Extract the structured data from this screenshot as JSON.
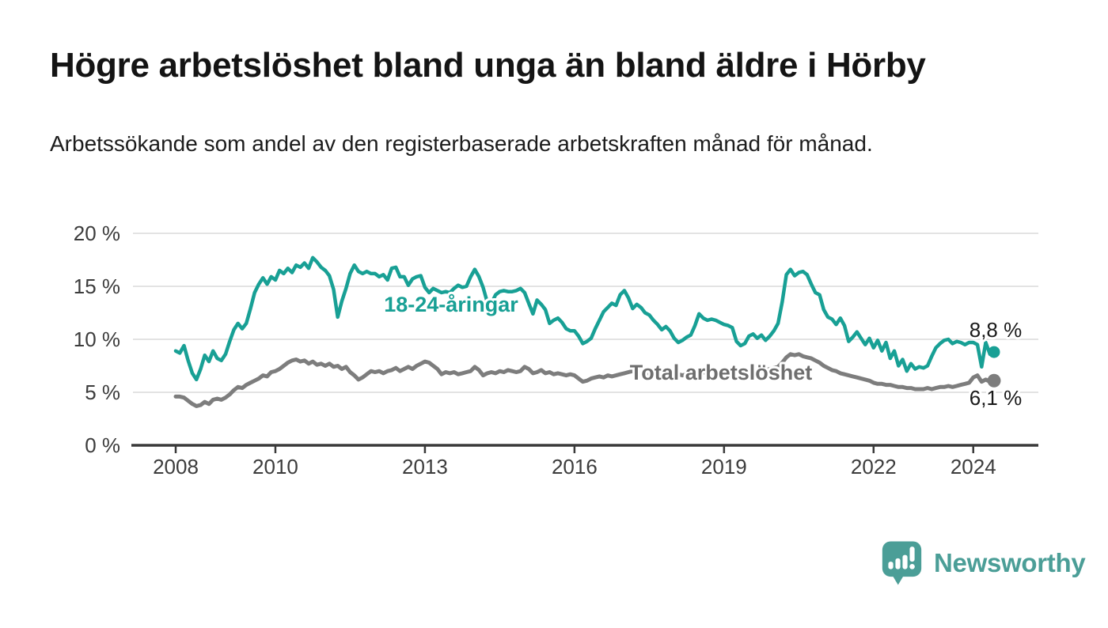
{
  "header": {
    "title": "Högre arbetslöshet bland unga än bland äldre i Hörby",
    "subtitle": "Arbetssökande som andel av den registerbaserade arbetskraften månad för månad."
  },
  "chart_data": {
    "type": "line",
    "title": "Högre arbetslöshet bland unga än bland äldre i Hörby",
    "subtitle": "Arbetssökande som andel av den registerbaserade arbetskraften månad för månad.",
    "frequency": "monthly",
    "x_start": "2008-01",
    "x_end": "2024-06",
    "grid": true,
    "legend_position": "inline-on-lines",
    "ylim": [
      0,
      21
    ],
    "ylabel": "",
    "xlabel": "",
    "y_ticks": [
      {
        "value": 0,
        "label": "0 %"
      },
      {
        "value": 5,
        "label": "5 %"
      },
      {
        "value": 10,
        "label": "10 %"
      },
      {
        "value": 15,
        "label": "15 %"
      },
      {
        "value": 20,
        "label": "20 %"
      }
    ],
    "x_ticks": [
      {
        "year": 2008,
        "label": "2008"
      },
      {
        "year": 2010,
        "label": "2010"
      },
      {
        "year": 2013,
        "label": "2013"
      },
      {
        "year": 2016,
        "label": "2016"
      },
      {
        "year": 2019,
        "label": "2019"
      },
      {
        "year": 2022,
        "label": "2022"
      },
      {
        "year": 2024,
        "label": "2024"
      }
    ],
    "series": [
      {
        "name": "Total arbetslöshet",
        "color": "#7D7D7D",
        "label_color": "#6E6E6E",
        "end_value": 6.1,
        "end_label": "6,1 %",
        "values": [
          4.6,
          4.6,
          4.5,
          4.2,
          3.9,
          3.7,
          3.8,
          4.1,
          3.9,
          4.3,
          4.4,
          4.3,
          4.5,
          4.8,
          5.2,
          5.5,
          5.4,
          5.7,
          5.9,
          6.1,
          6.3,
          6.6,
          6.5,
          6.9,
          7.0,
          7.2,
          7.5,
          7.8,
          8.0,
          8.1,
          7.9,
          8.0,
          7.7,
          7.9,
          7.6,
          7.7,
          7.5,
          7.7,
          7.4,
          7.5,
          7.2,
          7.4,
          6.9,
          6.6,
          6.2,
          6.4,
          6.7,
          7.0,
          6.9,
          7.0,
          6.8,
          7.0,
          7.1,
          7.3,
          7.0,
          7.2,
          7.4,
          7.2,
          7.5,
          7.7,
          7.9,
          7.8,
          7.5,
          7.2,
          6.7,
          6.9,
          6.8,
          6.9,
          6.7,
          6.8,
          6.9,
          7.0,
          7.4,
          7.1,
          6.6,
          6.8,
          6.9,
          6.8,
          7.0,
          6.9,
          7.1,
          7.0,
          6.9,
          7.0,
          7.4,
          7.2,
          6.8,
          6.9,
          7.1,
          6.8,
          6.9,
          6.7,
          6.8,
          6.7,
          6.6,
          6.7,
          6.6,
          6.3,
          6.0,
          6.1,
          6.3,
          6.4,
          6.5,
          6.4,
          6.6,
          6.5,
          6.6,
          6.7,
          6.8,
          6.9,
          7.0,
          6.9,
          6.8,
          6.9,
          6.7,
          6.8,
          6.6,
          6.7,
          6.8,
          6.9,
          6.8,
          6.7,
          6.6,
          6.7,
          6.8,
          6.9,
          7.0,
          6.9,
          6.8,
          6.9,
          6.8,
          6.7,
          6.8,
          6.9,
          6.8,
          6.7,
          6.6,
          6.8,
          6.9,
          7.0,
          6.9,
          7.0,
          7.1,
          7.2,
          7.3,
          7.4,
          7.8,
          8.3,
          8.6,
          8.5,
          8.6,
          8.4,
          8.3,
          8.2,
          8.0,
          7.8,
          7.5,
          7.3,
          7.1,
          7.0,
          6.8,
          6.7,
          6.6,
          6.5,
          6.4,
          6.3,
          6.2,
          6.1,
          5.9,
          5.8,
          5.8,
          5.7,
          5.7,
          5.6,
          5.5,
          5.5,
          5.4,
          5.4,
          5.3,
          5.3,
          5.3,
          5.4,
          5.3,
          5.4,
          5.5,
          5.5,
          5.6,
          5.5,
          5.6,
          5.7,
          5.8,
          5.9,
          6.4,
          6.6,
          6.0,
          6.2,
          6.0,
          6.1
        ]
      },
      {
        "name": "18-24-åringar",
        "color": "#18A095",
        "label_color": "#18A095",
        "end_value": 8.8,
        "end_label": "8,8 %",
        "values": [
          8.9,
          8.7,
          9.4,
          8.0,
          6.8,
          6.2,
          7.2,
          8.5,
          7.9,
          8.9,
          8.2,
          8.0,
          8.6,
          9.8,
          10.9,
          11.5,
          11.0,
          11.5,
          12.9,
          14.4,
          15.2,
          15.8,
          15.2,
          15.9,
          15.6,
          16.5,
          16.2,
          16.7,
          16.3,
          17.0,
          16.8,
          17.2,
          16.7,
          17.7,
          17.3,
          16.8,
          16.5,
          16.0,
          14.7,
          12.1,
          13.6,
          14.8,
          16.2,
          17.0,
          16.4,
          16.2,
          16.4,
          16.2,
          16.2,
          15.9,
          16.1,
          15.6,
          16.7,
          16.8,
          15.9,
          15.9,
          15.1,
          15.7,
          15.9,
          16.0,
          14.9,
          14.4,
          14.8,
          14.6,
          14.4,
          14.5,
          14.4,
          14.8,
          15.1,
          14.9,
          15.0,
          15.9,
          16.6,
          15.9,
          14.9,
          13.5,
          13.4,
          14.2,
          14.5,
          14.6,
          14.5,
          14.5,
          14.6,
          14.8,
          14.4,
          13.4,
          12.4,
          13.7,
          13.3,
          12.8,
          11.5,
          11.8,
          12.0,
          11.6,
          11.0,
          10.8,
          10.8,
          10.3,
          9.6,
          9.8,
          10.1,
          11.0,
          11.8,
          12.6,
          13.0,
          13.4,
          13.2,
          14.2,
          14.6,
          13.9,
          12.9,
          13.3,
          13.0,
          12.5,
          12.3,
          11.8,
          11.4,
          10.9,
          11.2,
          10.8,
          10.1,
          9.7,
          9.9,
          10.2,
          10.4,
          11.3,
          12.4,
          12.0,
          11.8,
          11.9,
          11.8,
          11.6,
          11.4,
          11.3,
          11.1,
          9.8,
          9.4,
          9.6,
          10.3,
          10.5,
          10.1,
          10.4,
          9.9,
          10.3,
          10.8,
          11.5,
          13.5,
          16.1,
          16.6,
          16.0,
          16.3,
          16.4,
          16.1,
          15.2,
          14.4,
          14.2,
          12.8,
          12.1,
          11.9,
          11.4,
          12.0,
          11.3,
          9.8,
          10.2,
          10.7,
          10.1,
          9.5,
          10.1,
          9.2,
          9.9,
          8.9,
          9.7,
          8.2,
          8.9,
          7.5,
          8.1,
          7.0,
          7.7,
          7.2,
          7.4,
          7.3,
          7.5,
          8.4,
          9.2,
          9.6,
          9.9,
          10.0,
          9.6,
          9.8,
          9.7,
          9.5,
          9.7,
          9.7,
          9.5,
          7.4,
          9.7,
          8.6,
          8.8
        ]
      }
    ],
    "colors": {
      "background": "#FFFFFF",
      "gridline": "#DADADA",
      "axis": "#3A3A3A",
      "tick_text": "#3C3C3C",
      "value_label_text": "#191919"
    }
  },
  "footer": {
    "brand": "Newsworthy",
    "logo_icon": "newsworthy-speech-bubble-bar-chart-icon",
    "brand_color": "#4B9E97"
  }
}
